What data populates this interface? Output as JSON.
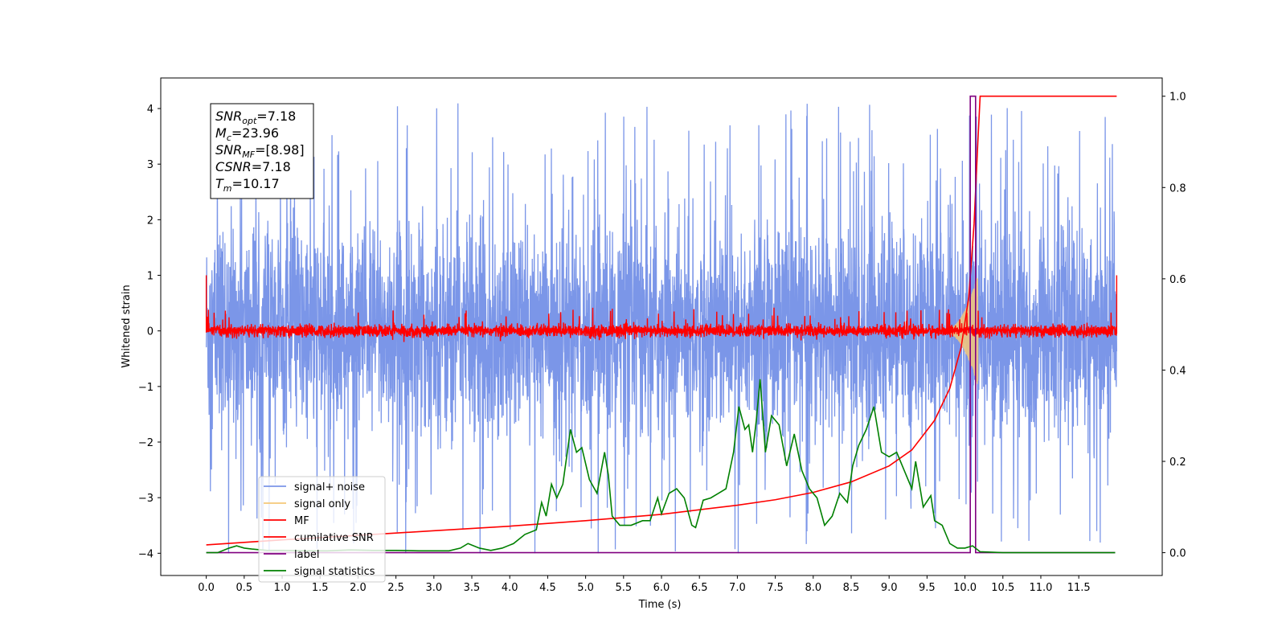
{
  "chart_data": {
    "type": "line",
    "title": "",
    "xlabel": "Time (s)",
    "ylabel": "Whitened strain",
    "xlim": [
      -0.6,
      12.6
    ],
    "ylim": [
      -4.4,
      4.55
    ],
    "y2lim": [
      -0.05,
      1.04
    ],
    "x_ticks": [
      0.0,
      0.5,
      1.0,
      1.5,
      2.0,
      2.5,
      3.0,
      3.5,
      4.0,
      4.5,
      5.0,
      5.5,
      6.0,
      6.5,
      7.0,
      7.5,
      8.0,
      8.5,
      9.0,
      9.5,
      10.0,
      10.5,
      11.0,
      11.5
    ],
    "x_tick_labels": [
      "0.0",
      "0.5",
      "1.0",
      "1.5",
      "2.0",
      "2.5",
      "3.0",
      "3.5",
      "4.0",
      "4.5",
      "5.0",
      "5.5",
      "6.0",
      "6.5",
      "7.0",
      "7.5",
      "8.0",
      "8.5",
      "9.0",
      "9.5",
      "10.0",
      "10.5",
      "11.0",
      "11.5"
    ],
    "y_ticks": [
      -4,
      -3,
      -2,
      -1,
      0,
      1,
      2,
      3,
      4
    ],
    "y_tick_labels": [
      "−4",
      "−3",
      "−2",
      "−1",
      "0",
      "1",
      "2",
      "3",
      "4"
    ],
    "y2_ticks": [
      0.0,
      0.2,
      0.4,
      0.6,
      0.8,
      1.0
    ],
    "y2_tick_labels": [
      "0.0",
      "0.2",
      "0.4",
      "0.6",
      "0.8",
      "1.0"
    ],
    "grid": false,
    "legend_position": "lower-left",
    "series": [
      {
        "name": "signal+ noise",
        "color": "#7b96e8",
        "axis": "left",
        "noise_band": [
          -2.6,
          2.6
        ],
        "peak_range": [
          -4.0,
          4.15
        ],
        "x_range": [
          0.0,
          12.0
        ]
      },
      {
        "name": "signal only",
        "color": "#f5c878",
        "axis": "left",
        "envelope": {
          "start": 9.7,
          "peak_x": 10.17,
          "peak_amplitude": 1.0
        }
      },
      {
        "name": "MF",
        "color": "#ff0000",
        "axis": "left",
        "noise_band": [
          -0.15,
          0.15
        ],
        "peak_range": [
          -0.2,
          0.45
        ],
        "x_range": [
          0.0,
          12.0
        ]
      },
      {
        "name": "cumilative SNR",
        "color": "#ff0000",
        "axis": "right",
        "x": [
          0.0,
          1.0,
          2.0,
          3.0,
          4.0,
          5.0,
          6.0,
          7.0,
          7.5,
          8.0,
          8.5,
          9.0,
          9.3,
          9.6,
          9.8,
          9.95,
          10.05,
          10.12,
          10.17,
          10.2,
          12.0
        ],
        "y": [
          0.017,
          0.028,
          0.038,
          0.048,
          0.058,
          0.07,
          0.084,
          0.104,
          0.116,
          0.132,
          0.155,
          0.19,
          0.225,
          0.29,
          0.36,
          0.45,
          0.56,
          0.72,
          0.9,
          1.0,
          1.0
        ]
      },
      {
        "name": "label",
        "color": "#800080",
        "axis": "right",
        "x": [
          0.0,
          10.07,
          10.07,
          10.14,
          10.14,
          11.98
        ],
        "y": [
          0.0,
          0.0,
          1.0,
          1.0,
          0.0,
          0.0
        ]
      },
      {
        "name": "signal statistics",
        "color": "#008000",
        "axis": "right",
        "x": [
          0.0,
          0.15,
          0.3,
          0.4,
          0.5,
          0.6,
          0.8,
          1.0,
          1.3,
          1.6,
          1.9,
          2.2,
          2.5,
          2.8,
          3.0,
          3.2,
          3.35,
          3.45,
          3.6,
          3.75,
          3.9,
          4.05,
          4.2,
          4.35,
          4.42,
          4.48,
          4.55,
          4.62,
          4.7,
          4.8,
          4.88,
          4.95,
          5.05,
          5.15,
          5.25,
          5.3,
          5.35,
          5.45,
          5.6,
          5.75,
          5.85,
          5.95,
          6.0,
          6.1,
          6.2,
          6.3,
          6.4,
          6.45,
          6.55,
          6.65,
          6.75,
          6.85,
          6.95,
          7.02,
          7.1,
          7.15,
          7.2,
          7.25,
          7.3,
          7.37,
          7.45,
          7.55,
          7.65,
          7.75,
          7.85,
          7.95,
          8.05,
          8.15,
          8.25,
          8.35,
          8.45,
          8.52,
          8.6,
          8.7,
          8.8,
          8.9,
          9.0,
          9.1,
          9.2,
          9.3,
          9.35,
          9.45,
          9.55,
          9.6,
          9.7,
          9.8,
          9.9,
          10.0,
          10.1,
          10.2,
          10.5,
          11.0,
          11.5,
          11.98
        ],
        "y": [
          0.0,
          0.0,
          0.01,
          0.015,
          0.01,
          0.008,
          0.005,
          0.005,
          0.004,
          0.004,
          0.006,
          0.005,
          0.005,
          0.004,
          0.004,
          0.004,
          0.01,
          0.02,
          0.01,
          0.005,
          0.01,
          0.02,
          0.04,
          0.05,
          0.11,
          0.08,
          0.15,
          0.12,
          0.15,
          0.27,
          0.22,
          0.23,
          0.16,
          0.13,
          0.22,
          0.17,
          0.08,
          0.06,
          0.06,
          0.07,
          0.07,
          0.12,
          0.085,
          0.13,
          0.14,
          0.12,
          0.06,
          0.055,
          0.115,
          0.12,
          0.13,
          0.14,
          0.22,
          0.32,
          0.27,
          0.28,
          0.22,
          0.29,
          0.38,
          0.22,
          0.3,
          0.28,
          0.19,
          0.26,
          0.18,
          0.14,
          0.12,
          0.06,
          0.08,
          0.13,
          0.11,
          0.19,
          0.235,
          0.27,
          0.32,
          0.22,
          0.21,
          0.22,
          0.18,
          0.14,
          0.2,
          0.1,
          0.125,
          0.07,
          0.06,
          0.02,
          0.01,
          0.01,
          0.015,
          0.002,
          0.0,
          0.0,
          0.0,
          0.0
        ]
      }
    ],
    "annotation": [
      {
        "sym": "SNR",
        "sub": "opt",
        "val": "=7.18"
      },
      {
        "sym": "M",
        "sub": "c",
        "val": "=23.96"
      },
      {
        "sym": "SNR",
        "sub": "MF",
        "val": "=[8.98]"
      },
      {
        "sym": "CSNR",
        "sub": "",
        "val": "=7.18"
      },
      {
        "sym": "T",
        "sub": "m",
        "val": "=10.17"
      }
    ]
  }
}
